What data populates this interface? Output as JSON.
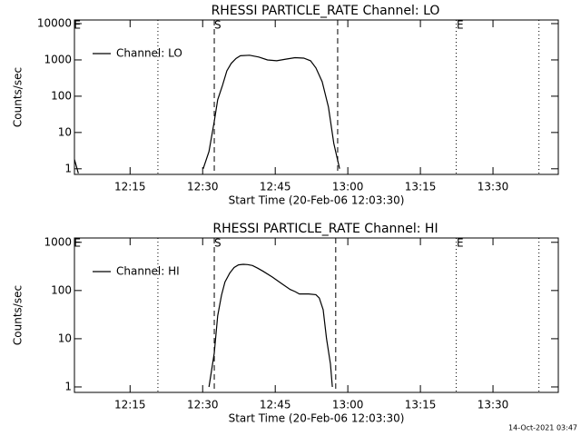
{
  "chart_data": [
    {
      "type": "line",
      "title": "RHESSI PARTICLE_RATE Channel: LO",
      "xlabel": "Start Time (20-Feb-06 12:03:30)",
      "ylabel": "Counts/sec",
      "log_y": true,
      "legend": "upper left",
      "xlim": [
        723.5,
        823.5
      ],
      "ylim": [
        0.7,
        12600
      ],
      "xticks": [
        {
          "value": 735,
          "label": "12:15"
        },
        {
          "value": 750,
          "label": "12:30"
        },
        {
          "value": 765,
          "label": "12:45"
        },
        {
          "value": 780,
          "label": "13:00"
        },
        {
          "value": 795,
          "label": "13:15"
        },
        {
          "value": 810,
          "label": "13:30"
        }
      ],
      "yticks": [
        1,
        10,
        100,
        1000,
        10000
      ],
      "markers": [
        {
          "x": 740.75,
          "style": "dotted"
        },
        {
          "x": 752.4,
          "style": "dashed"
        },
        {
          "x": 777.9,
          "style": "dashed"
        },
        {
          "x": 802.4,
          "style": "dotted"
        },
        {
          "x": 819.5,
          "style": "dotted"
        }
      ],
      "annotations": [
        {
          "text": "E",
          "x": 724.1
        },
        {
          "text": "S",
          "x": 753.1
        },
        {
          "text": "E",
          "x": 803.2
        }
      ],
      "series": [
        {
          "name": "Channel: LO",
          "color": "#000000",
          "x": [
            723.5,
            724.3,
            null,
            750.1,
            751.3,
            752.4,
            753.1,
            754.1,
            755.0,
            755.9,
            756.9,
            757.8,
            759.7,
            761.6,
            763.4,
            765.3,
            767.2,
            769.1,
            770.9,
            772.3,
            773.4,
            774.7,
            776.0,
            777.1,
            778.3
          ],
          "values": [
            1.8,
            0.75,
            null,
            1,
            3,
            20,
            80,
            200,
            500,
            800,
            1100,
            1300,
            1350,
            1200,
            1000,
            950,
            1050,
            1150,
            1120,
            950,
            600,
            250,
            50,
            5,
            1
          ]
        }
      ]
    },
    {
      "type": "line",
      "title": "RHESSI PARTICLE_RATE Channel: HI",
      "xlabel": "Start Time (20-Feb-06 12:03:30)",
      "ylabel": "Counts/sec",
      "log_y": true,
      "legend": "upper left",
      "xlim": [
        723.5,
        823.5
      ],
      "ylim": [
        0.77,
        1230
      ],
      "xticks": [
        {
          "value": 735,
          "label": "12:15"
        },
        {
          "value": 750,
          "label": "12:30"
        },
        {
          "value": 765,
          "label": "12:45"
        },
        {
          "value": 780,
          "label": "13:00"
        },
        {
          "value": 795,
          "label": "13:15"
        },
        {
          "value": 810,
          "label": "13:30"
        }
      ],
      "yticks": [
        1,
        10,
        100,
        1000
      ],
      "markers": [
        {
          "x": 740.75,
          "style": "dotted"
        },
        {
          "x": 752.4,
          "style": "dashed"
        },
        {
          "x": 777.5,
          "style": "dashed"
        },
        {
          "x": 802.4,
          "style": "dotted"
        },
        {
          "x": 819.5,
          "style": "dotted"
        }
      ],
      "annotations": [
        {
          "text": "E",
          "x": 724.1
        },
        {
          "text": "S",
          "x": 753.1
        },
        {
          "text": "E",
          "x": 803.2
        }
      ],
      "series": [
        {
          "name": "Channel: HI",
          "color": "#000000",
          "x": [
            751.3,
            752.4,
            753.1,
            753.9,
            754.6,
            755.6,
            756.5,
            757.4,
            758.4,
            759.3,
            760.3,
            761.4,
            762.5,
            764.4,
            766.3,
            768.1,
            769.1,
            770.0,
            771.9,
            773.4,
            774.1,
            774.9,
            775.6,
            776.4,
            776.8
          ],
          "values": [
            1,
            5,
            30,
            80,
            150,
            230,
            300,
            340,
            350,
            345,
            330,
            290,
            250,
            190,
            140,
            105,
            95,
            85,
            85,
            82,
            70,
            40,
            10,
            3,
            1
          ]
        }
      ]
    }
  ],
  "footer": "14-Oct-2021 03:47"
}
